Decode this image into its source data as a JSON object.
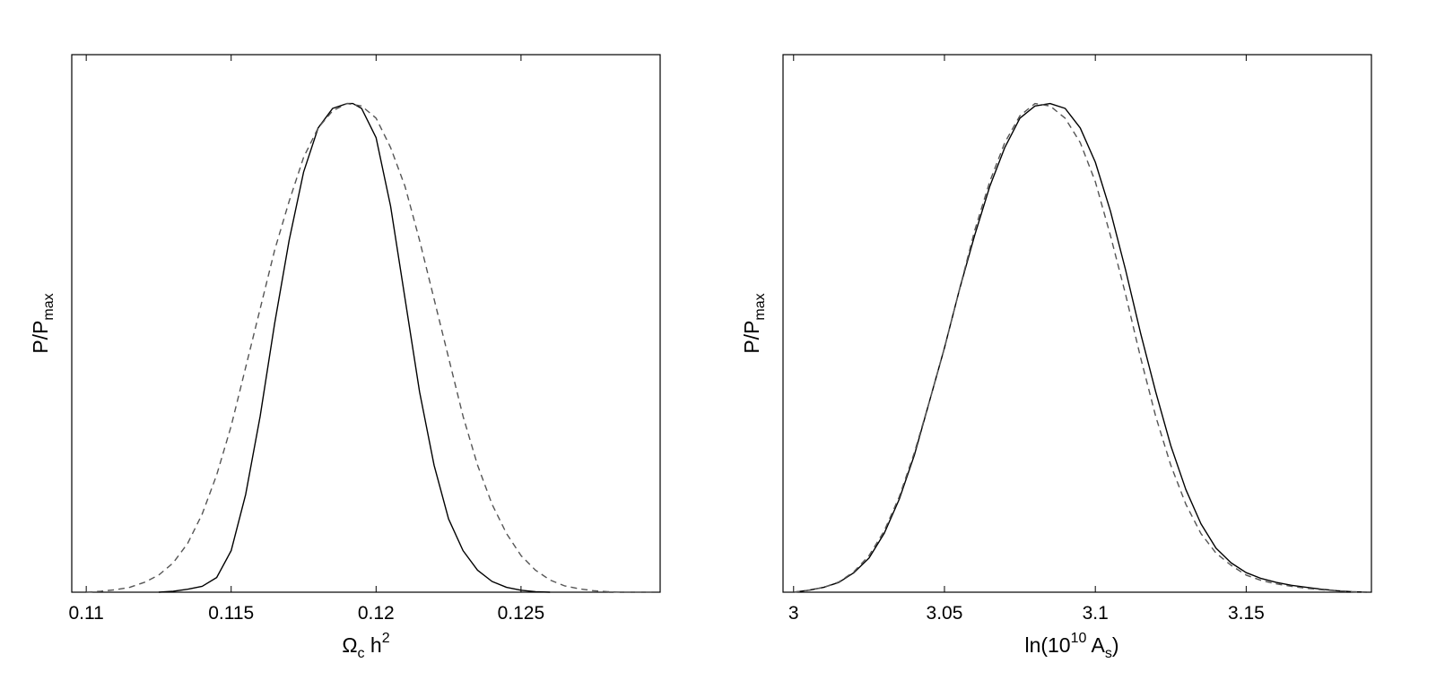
{
  "chart_data": [
    {
      "type": "line",
      "xlabel": {
        "main": "Ω",
        "sub": "c",
        "rest": " h",
        "sup": "2"
      },
      "ylabel": {
        "main": "P/P",
        "sub": "max"
      },
      "xlim": [
        0.1095,
        0.1298
      ],
      "ylim": [
        0,
        1.1
      ],
      "xticks": [
        0.11,
        0.115,
        0.12,
        0.125
      ],
      "xtick_labels": [
        "0.11",
        "0.115",
        "0.12",
        "0.125"
      ],
      "grid": false,
      "series": [
        {
          "style": "solid",
          "x": [
            0.1125,
            0.113,
            0.1135,
            0.114,
            0.1145,
            0.115,
            0.1155,
            0.116,
            0.1165,
            0.117,
            0.1175,
            0.118,
            0.1185,
            0.119,
            0.1192,
            0.1195,
            0.12,
            0.1205,
            0.121,
            0.1215,
            0.122,
            0.1225,
            0.123,
            0.1235,
            0.124,
            0.1245,
            0.125,
            0.1255,
            0.126
          ],
          "y": [
            0.0,
            0.002,
            0.006,
            0.012,
            0.03,
            0.085,
            0.2,
            0.36,
            0.55,
            0.72,
            0.86,
            0.95,
            0.99,
            1.0,
            1.0,
            0.99,
            0.93,
            0.79,
            0.6,
            0.41,
            0.26,
            0.15,
            0.085,
            0.045,
            0.022,
            0.01,
            0.004,
            0.001,
            0.0
          ]
        },
        {
          "style": "dashed",
          "x": [
            0.11,
            0.1105,
            0.111,
            0.1115,
            0.112,
            0.1125,
            0.113,
            0.1135,
            0.114,
            0.1145,
            0.115,
            0.1155,
            0.116,
            0.1165,
            0.117,
            0.1175,
            0.118,
            0.1185,
            0.119,
            0.1195,
            0.12,
            0.1205,
            0.121,
            0.1215,
            0.122,
            0.1225,
            0.123,
            0.1235,
            0.124,
            0.1245,
            0.125,
            0.1255,
            0.126,
            0.1265,
            0.127,
            0.1275,
            0.128,
            0.1285,
            0.129,
            0.1295
          ],
          "y": [
            0.0,
            0.002,
            0.005,
            0.01,
            0.02,
            0.035,
            0.06,
            0.1,
            0.16,
            0.24,
            0.34,
            0.46,
            0.58,
            0.7,
            0.8,
            0.89,
            0.95,
            0.985,
            1.0,
            0.995,
            0.97,
            0.91,
            0.83,
            0.72,
            0.6,
            0.48,
            0.36,
            0.26,
            0.18,
            0.12,
            0.075,
            0.045,
            0.025,
            0.013,
            0.007,
            0.003,
            0.001,
            0.0,
            0.0,
            0.0
          ]
        }
      ]
    },
    {
      "type": "line",
      "xlabel": {
        "main": "ln(10",
        "sup": "10",
        "rest": " A",
        "sub": "s",
        "end": ")"
      },
      "ylabel": {
        "main": "P/P",
        "sub": "max"
      },
      "xlim": [
        2.9965,
        3.1915
      ],
      "ylim": [
        0,
        1.1
      ],
      "xticks": [
        3.0,
        3.05,
        3.1,
        3.15
      ],
      "xtick_labels": [
        "3",
        "3.05",
        "3.1",
        "3.15"
      ],
      "grid": false,
      "series": [
        {
          "style": "solid",
          "x": [
            3.0,
            3.005,
            3.01,
            3.015,
            3.02,
            3.025,
            3.03,
            3.035,
            3.04,
            3.045,
            3.05,
            3.055,
            3.06,
            3.065,
            3.07,
            3.075,
            3.08,
            3.085,
            3.09,
            3.095,
            3.1,
            3.105,
            3.11,
            3.115,
            3.12,
            3.125,
            3.13,
            3.135,
            3.14,
            3.145,
            3.15,
            3.155,
            3.16,
            3.165,
            3.17,
            3.175,
            3.18,
            3.185,
            3.19
          ],
          "y": [
            0.0,
            0.004,
            0.01,
            0.02,
            0.04,
            0.07,
            0.12,
            0.19,
            0.28,
            0.39,
            0.5,
            0.62,
            0.73,
            0.83,
            0.91,
            0.97,
            0.995,
            1.0,
            0.99,
            0.95,
            0.88,
            0.78,
            0.66,
            0.53,
            0.41,
            0.3,
            0.21,
            0.14,
            0.09,
            0.06,
            0.04,
            0.028,
            0.02,
            0.014,
            0.01,
            0.006,
            0.003,
            0.001,
            0.0
          ]
        },
        {
          "style": "dashed",
          "x": [
            3.0,
            3.005,
            3.01,
            3.015,
            3.02,
            3.025,
            3.03,
            3.035,
            3.04,
            3.045,
            3.05,
            3.055,
            3.06,
            3.065,
            3.07,
            3.075,
            3.08,
            3.085,
            3.09,
            3.095,
            3.1,
            3.105,
            3.11,
            3.115,
            3.12,
            3.125,
            3.13,
            3.135,
            3.14,
            3.145,
            3.15,
            3.155,
            3.16,
            3.165,
            3.17,
            3.175,
            3.18,
            3.185,
            3.19
          ],
          "y": [
            0.0,
            0.004,
            0.01,
            0.021,
            0.042,
            0.075,
            0.125,
            0.195,
            0.285,
            0.39,
            0.5,
            0.62,
            0.74,
            0.84,
            0.92,
            0.975,
            1.0,
            0.995,
            0.97,
            0.92,
            0.84,
            0.73,
            0.61,
            0.48,
            0.36,
            0.26,
            0.18,
            0.12,
            0.08,
            0.055,
            0.035,
            0.024,
            0.017,
            0.012,
            0.008,
            0.005,
            0.003,
            0.001,
            0.0
          ]
        }
      ]
    }
  ]
}
